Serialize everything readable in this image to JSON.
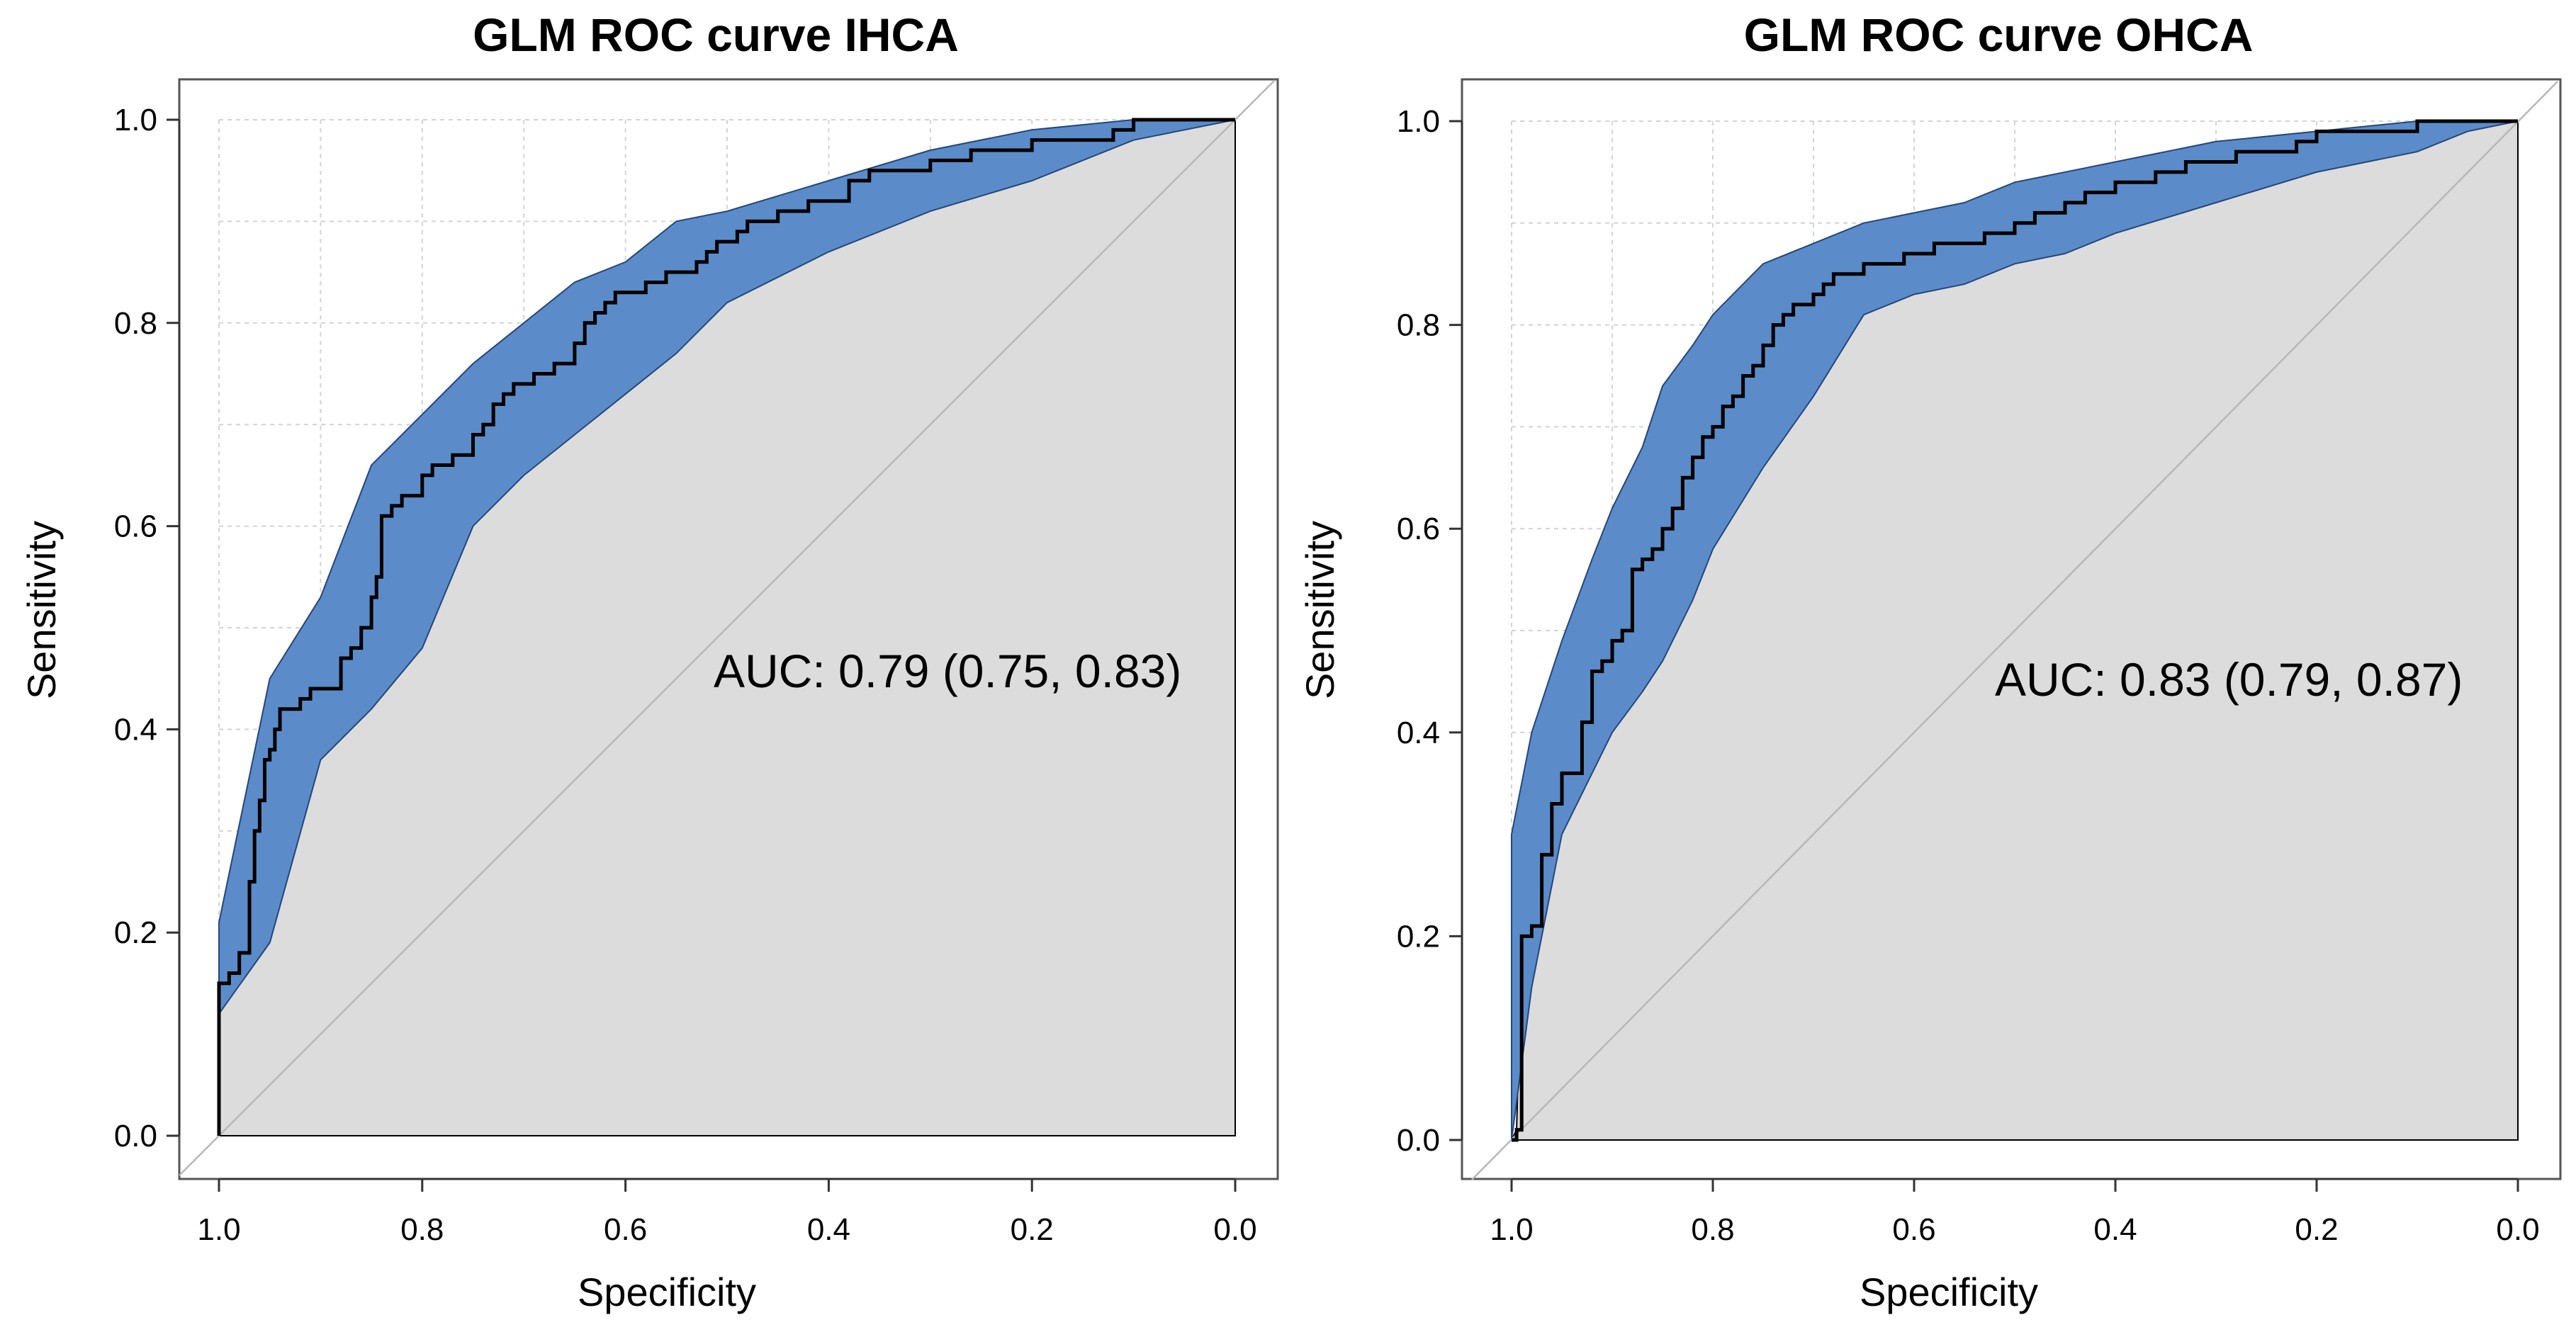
{
  "colors": {
    "band_fill": "#5b8cc9",
    "band_stroke": "#24467a",
    "area_fill": "#dcdcdc",
    "curve": "#000000",
    "grid": "#d4d4d4",
    "frame": "#555555"
  },
  "chart_data": [
    {
      "type": "line",
      "title": "GLM ROC curve IHCA",
      "xlabel": "Specificity",
      "ylabel": "Sensitivity",
      "xlim": [
        1.0,
        0.0
      ],
      "ylim": [
        0.0,
        1.0
      ],
      "x_ticks": [
        "1.0",
        "0.8",
        "0.6",
        "0.4",
        "0.2",
        "0.0"
      ],
      "y_ticks": [
        "0.0",
        "0.2",
        "0.4",
        "0.6",
        "0.8",
        "1.0"
      ],
      "grid": true,
      "auc_label": "AUC: 0.79 (0.75, 0.83)",
      "series": [
        {
          "name": "ROC curve",
          "x": [
            1.0,
            1.0,
            0.99,
            0.98,
            0.97,
            0.965,
            0.96,
            0.955,
            0.95,
            0.945,
            0.94,
            0.93,
            0.92,
            0.91,
            0.9,
            0.88,
            0.87,
            0.86,
            0.85,
            0.845,
            0.84,
            0.83,
            0.82,
            0.8,
            0.79,
            0.78,
            0.77,
            0.75,
            0.74,
            0.73,
            0.72,
            0.71,
            0.7,
            0.69,
            0.67,
            0.65,
            0.64,
            0.63,
            0.62,
            0.61,
            0.6,
            0.58,
            0.57,
            0.56,
            0.55,
            0.53,
            0.52,
            0.51,
            0.5,
            0.49,
            0.48,
            0.46,
            0.45,
            0.43,
            0.42,
            0.4,
            0.38,
            0.36,
            0.34,
            0.32,
            0.3,
            0.28,
            0.26,
            0.24,
            0.22,
            0.2,
            0.18,
            0.16,
            0.14,
            0.12,
            0.1,
            0.08,
            0.05,
            0.0
          ],
          "y": [
            0.0,
            0.15,
            0.16,
            0.18,
            0.25,
            0.3,
            0.33,
            0.37,
            0.38,
            0.4,
            0.42,
            0.42,
            0.43,
            0.44,
            0.44,
            0.47,
            0.48,
            0.5,
            0.53,
            0.55,
            0.61,
            0.62,
            0.63,
            0.65,
            0.66,
            0.66,
            0.67,
            0.69,
            0.7,
            0.72,
            0.73,
            0.74,
            0.74,
            0.75,
            0.76,
            0.78,
            0.8,
            0.81,
            0.82,
            0.83,
            0.83,
            0.84,
            0.84,
            0.85,
            0.85,
            0.86,
            0.87,
            0.88,
            0.88,
            0.89,
            0.9,
            0.9,
            0.91,
            0.91,
            0.92,
            0.92,
            0.94,
            0.95,
            0.95,
            0.95,
            0.96,
            0.96,
            0.97,
            0.97,
            0.97,
            0.98,
            0.98,
            0.98,
            0.98,
            0.99,
            1.0,
            1.0,
            1.0,
            1.0
          ]
        },
        {
          "name": "CI upper",
          "x": [
            1.0,
            0.95,
            0.9,
            0.85,
            0.8,
            0.75,
            0.7,
            0.65,
            0.6,
            0.55,
            0.5,
            0.4,
            0.3,
            0.2,
            0.1,
            0.0
          ],
          "y": [
            0.21,
            0.45,
            0.53,
            0.66,
            0.71,
            0.76,
            0.8,
            0.84,
            0.86,
            0.9,
            0.91,
            0.94,
            0.97,
            0.99,
            1.0,
            1.0
          ]
        },
        {
          "name": "CI lower",
          "x": [
            1.0,
            0.95,
            0.9,
            0.85,
            0.8,
            0.75,
            0.7,
            0.65,
            0.6,
            0.55,
            0.5,
            0.4,
            0.3,
            0.2,
            0.1,
            0.0
          ],
          "y": [
            0.12,
            0.19,
            0.37,
            0.42,
            0.48,
            0.6,
            0.65,
            0.69,
            0.73,
            0.77,
            0.82,
            0.87,
            0.91,
            0.94,
            0.98,
            1.0
          ]
        }
      ]
    },
    {
      "type": "line",
      "title": "GLM ROC curve OHCA",
      "xlabel": "Specificity",
      "ylabel": "Sensitivity",
      "xlim": [
        1.0,
        0.0
      ],
      "ylim": [
        0.0,
        1.0
      ],
      "x_ticks": [
        "1.0",
        "0.8",
        "0.6",
        "0.4",
        "0.2",
        "0.0"
      ],
      "y_ticks": [
        "0.0",
        "0.2",
        "0.4",
        "0.6",
        "0.8",
        "1.0"
      ],
      "grid": true,
      "auc_label": "AUC: 0.83 (0.79, 0.87)",
      "series": [
        {
          "name": "ROC curve",
          "x": [
            1.0,
            0.995,
            0.99,
            0.98,
            0.97,
            0.96,
            0.95,
            0.94,
            0.93,
            0.92,
            0.91,
            0.9,
            0.89,
            0.88,
            0.87,
            0.86,
            0.85,
            0.84,
            0.83,
            0.82,
            0.81,
            0.8,
            0.79,
            0.78,
            0.77,
            0.76,
            0.75,
            0.74,
            0.73,
            0.72,
            0.71,
            0.7,
            0.69,
            0.68,
            0.66,
            0.65,
            0.63,
            0.61,
            0.6,
            0.58,
            0.56,
            0.55,
            0.53,
            0.51,
            0.5,
            0.48,
            0.46,
            0.45,
            0.43,
            0.41,
            0.4,
            0.38,
            0.36,
            0.35,
            0.33,
            0.31,
            0.3,
            0.28,
            0.25,
            0.22,
            0.2,
            0.15,
            0.1,
            0.05,
            0.0
          ],
          "y": [
            0.0,
            0.01,
            0.2,
            0.21,
            0.28,
            0.33,
            0.36,
            0.36,
            0.41,
            0.46,
            0.47,
            0.49,
            0.5,
            0.56,
            0.57,
            0.58,
            0.6,
            0.62,
            0.65,
            0.67,
            0.69,
            0.7,
            0.72,
            0.73,
            0.75,
            0.76,
            0.78,
            0.8,
            0.81,
            0.82,
            0.82,
            0.83,
            0.84,
            0.85,
            0.85,
            0.86,
            0.86,
            0.87,
            0.87,
            0.88,
            0.88,
            0.88,
            0.89,
            0.89,
            0.9,
            0.91,
            0.91,
            0.92,
            0.93,
            0.93,
            0.94,
            0.94,
            0.95,
            0.95,
            0.96,
            0.96,
            0.96,
            0.97,
            0.97,
            0.98,
            0.99,
            0.99,
            1.0,
            1.0,
            1.0
          ]
        },
        {
          "name": "CI upper",
          "x": [
            1.0,
            0.98,
            0.95,
            0.92,
            0.9,
            0.87,
            0.85,
            0.82,
            0.8,
            0.75,
            0.7,
            0.65,
            0.6,
            0.55,
            0.5,
            0.4,
            0.3,
            0.2,
            0.1,
            0.0
          ],
          "y": [
            0.3,
            0.4,
            0.49,
            0.57,
            0.62,
            0.68,
            0.74,
            0.78,
            0.81,
            0.86,
            0.88,
            0.9,
            0.91,
            0.92,
            0.94,
            0.96,
            0.98,
            0.99,
            1.0,
            1.0
          ]
        },
        {
          "name": "CI lower",
          "x": [
            1.0,
            0.98,
            0.95,
            0.92,
            0.9,
            0.87,
            0.85,
            0.82,
            0.8,
            0.75,
            0.7,
            0.65,
            0.6,
            0.55,
            0.5,
            0.45,
            0.4,
            0.3,
            0.2,
            0.1,
            0.05,
            0.0
          ],
          "y": [
            0.0,
            0.15,
            0.3,
            0.36,
            0.4,
            0.44,
            0.47,
            0.53,
            0.58,
            0.66,
            0.73,
            0.81,
            0.83,
            0.84,
            0.86,
            0.87,
            0.89,
            0.92,
            0.95,
            0.97,
            0.99,
            1.0
          ]
        }
      ]
    }
  ]
}
